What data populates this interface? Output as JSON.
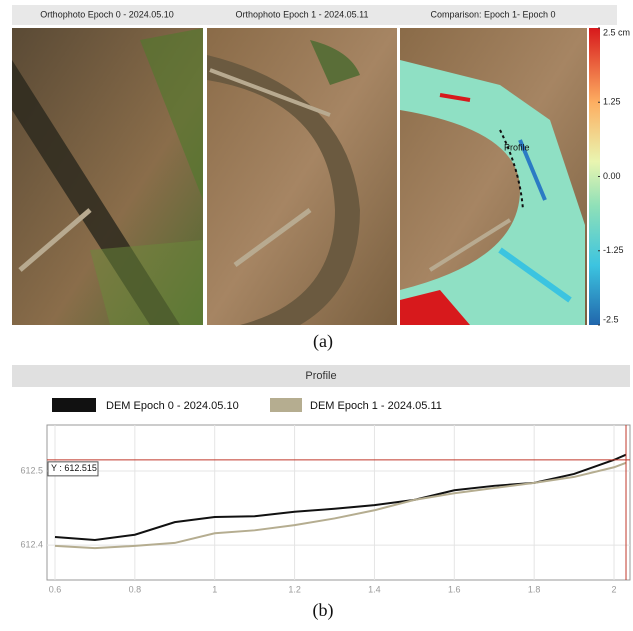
{
  "figure_a": {
    "panel_titles": [
      "Orthophoto Epoch 0 - 2024.05.10",
      "Orthophoto Epoch 1 - 2024.05.11",
      "Comparison: Epoch 1- Epoch 0"
    ],
    "map_label": "Profile",
    "colorbar": {
      "lim": [
        -2.5,
        2.5
      ],
      "ticks": [
        {
          "value": 2.5,
          "label": "2.5 cm"
        },
        1.25,
        {
          "value": 0,
          "label": "0.00"
        },
        -1.25,
        -2.5
      ]
    },
    "caption": "(a)"
  },
  "chart_data": {
    "type": "line",
    "title": "Profile",
    "x": [
      0.6,
      0.7,
      0.8,
      0.9,
      1.0,
      1.1,
      1.2,
      1.3,
      1.4,
      1.5,
      1.6,
      1.7,
      1.8,
      1.9,
      2.0,
      2.03
    ],
    "series": [
      {
        "name": "DEM Epoch 0 - 2024.05.10",
        "color": "#111111",
        "values": [
          612.411,
          612.407,
          612.414,
          612.431,
          612.438,
          612.439,
          612.445,
          612.449,
          612.454,
          612.461,
          612.474,
          612.48,
          612.484,
          612.496,
          612.515,
          612.522
        ]
      },
      {
        "name": "DEM Epoch 1 - 2024.05.11",
        "color": "#b5ad90",
        "values": [
          612.399,
          612.396,
          612.399,
          612.403,
          612.416,
          612.42,
          612.427,
          612.436,
          612.447,
          612.461,
          612.47,
          612.477,
          612.484,
          612.492,
          612.505,
          612.511
        ]
      }
    ],
    "xlim": [
      0.58,
      2.04
    ],
    "xticks": [
      0.6,
      0.8,
      1,
      1.2,
      1.4,
      1.6,
      1.8,
      2
    ],
    "ylim": [
      612.353,
      612.562
    ],
    "yticks": [
      612.4,
      612.5
    ],
    "grid": true,
    "cursor": {
      "label": "Y : 612.515",
      "y": 612.515,
      "x": 2.03
    },
    "caption": "(b)"
  }
}
